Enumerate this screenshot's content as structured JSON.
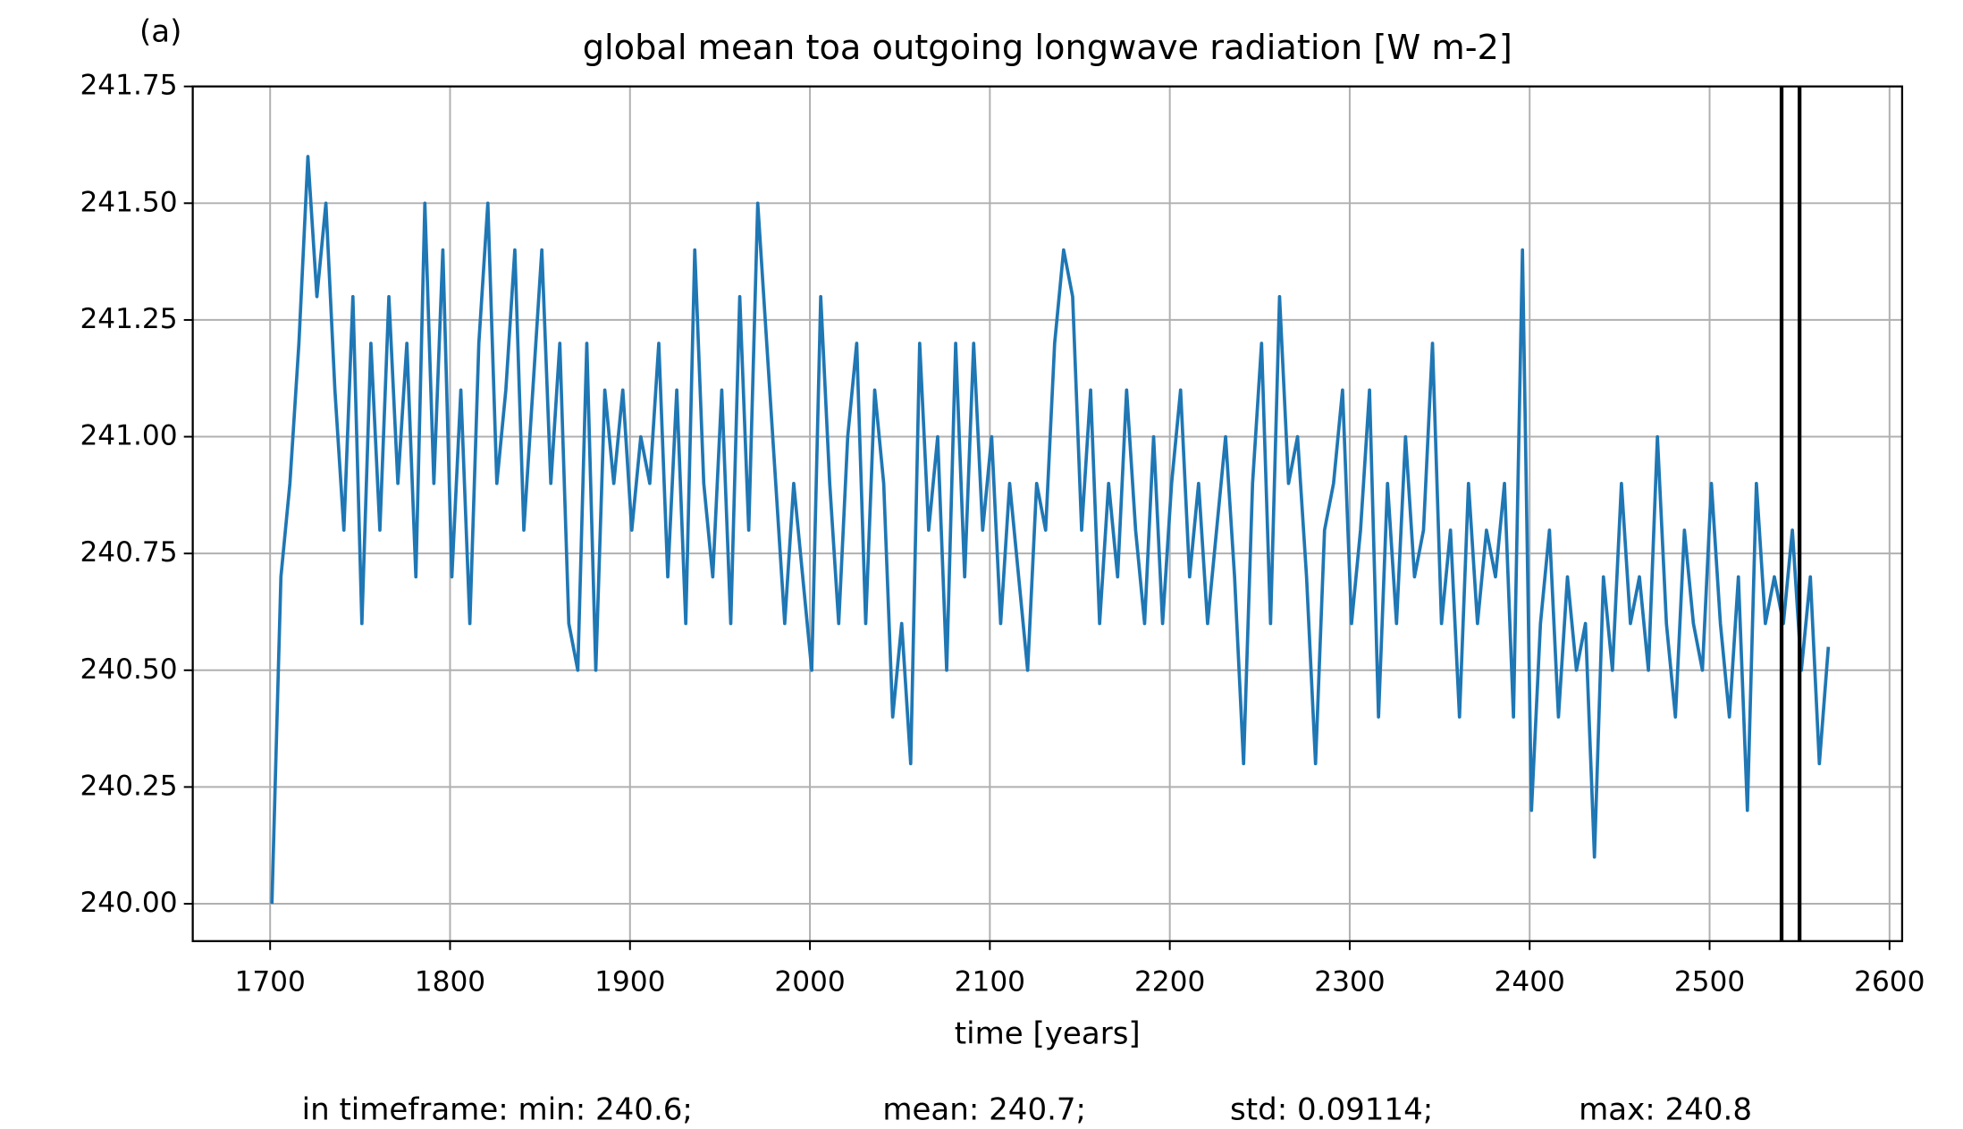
{
  "chart_data": {
    "type": "line",
    "panel_label": "(a)",
    "title": "global mean toa outgoing longwave radiation [W m-2]",
    "xlabel": "time [years]",
    "footer": [
      "in timeframe: min: 240.6;",
      "mean: 240.7;",
      "std: 0.09114;",
      "max: 240.8"
    ],
    "xlim": [
      1657,
      2607
    ],
    "ylim": [
      239.92,
      241.75
    ],
    "xticks": [
      1700,
      1800,
      1900,
      2000,
      2100,
      2200,
      2300,
      2400,
      2500,
      2600
    ],
    "yticks": [
      {
        "value": 240.0,
        "label": "240.00"
      },
      240.25,
      {
        "value": 240.5,
        "label": "240.50"
      },
      240.75,
      {
        "value": 241.0,
        "label": "241.00"
      },
      241.25,
      {
        "value": 241.5,
        "label": "241.50"
      },
      241.75
    ],
    "grid": true,
    "vlines": [
      2540,
      2550
    ],
    "vline_color": "#000000",
    "series": [
      {
        "color": "#1f77b4",
        "x": [
          1701,
          1706,
          1711,
          1716,
          1721,
          1726,
          1731,
          1736,
          1741,
          1746,
          1751,
          1756,
          1761,
          1766,
          1771,
          1776,
          1781,
          1786,
          1791,
          1796,
          1801,
          1806,
          1811,
          1816,
          1821,
          1826,
          1831,
          1836,
          1841,
          1846,
          1851,
          1856,
          1861,
          1866,
          1871,
          1876,
          1881,
          1886,
          1891,
          1896,
          1901,
          1906,
          1911,
          1916,
          1921,
          1926,
          1931,
          1936,
          1941,
          1946,
          1951,
          1956,
          1961,
          1966,
          1971,
          1976,
          1981,
          1986,
          1991,
          1996,
          2001,
          2006,
          2011,
          2016,
          2021,
          2026,
          2031,
          2036,
          2041,
          2046,
          2051,
          2056,
          2061,
          2066,
          2071,
          2076,
          2081,
          2086,
          2091,
          2096,
          2101,
          2106,
          2111,
          2116,
          2121,
          2126,
          2131,
          2136,
          2141,
          2146,
          2151,
          2156,
          2161,
          2166,
          2171,
          2176,
          2181,
          2186,
          2191,
          2196,
          2201,
          2206,
          2211,
          2216,
          2221,
          2226,
          2231,
          2236,
          2241,
          2246,
          2251,
          2256,
          2261,
          2266,
          2271,
          2276,
          2281,
          2286,
          2291,
          2296,
          2301,
          2306,
          2311,
          2316,
          2321,
          2326,
          2331,
          2336,
          2341,
          2346,
          2351,
          2356,
          2361,
          2366,
          2371,
          2376,
          2381,
          2386,
          2391,
          2396,
          2401,
          2406,
          2411,
          2416,
          2421,
          2426,
          2431,
          2436,
          2441,
          2446,
          2451,
          2456,
          2461,
          2466,
          2471,
          2476,
          2481,
          2486,
          2491,
          2496,
          2501,
          2506,
          2511,
          2516,
          2521,
          2526,
          2531,
          2536,
          2541,
          2546,
          2551,
          2556,
          2561,
          2566
        ],
        "values": [
          240.0,
          240.7,
          240.9,
          241.2,
          241.6,
          241.3,
          241.5,
          241.1,
          240.8,
          241.3,
          240.6,
          241.2,
          240.8,
          241.3,
          240.9,
          241.2,
          240.7,
          241.5,
          240.9,
          241.4,
          240.7,
          241.1,
          240.6,
          241.2,
          241.5,
          240.9,
          241.1,
          241.4,
          240.8,
          241.1,
          241.4,
          240.9,
          241.2,
          240.6,
          240.5,
          241.2,
          240.5,
          241.1,
          240.9,
          241.1,
          240.8,
          241.0,
          240.9,
          241.2,
          240.7,
          241.1,
          240.6,
          241.4,
          240.9,
          240.7,
          241.1,
          240.6,
          241.3,
          240.8,
          241.5,
          241.2,
          240.9,
          240.6,
          240.9,
          240.7,
          240.5,
          241.3,
          240.9,
          240.6,
          241.0,
          241.2,
          240.6,
          241.1,
          240.9,
          240.4,
          240.6,
          240.3,
          241.2,
          240.8,
          241.0,
          240.5,
          241.2,
          240.7,
          241.2,
          240.8,
          241.0,
          240.6,
          240.9,
          240.7,
          240.5,
          240.9,
          240.8,
          241.2,
          241.4,
          241.3,
          240.8,
          241.1,
          240.6,
          240.9,
          240.7,
          241.1,
          240.8,
          240.6,
          241.0,
          240.6,
          240.9,
          241.1,
          240.7,
          240.9,
          240.6,
          240.8,
          241.0,
          240.7,
          240.3,
          240.9,
          241.2,
          240.6,
          241.3,
          240.9,
          241.0,
          240.7,
          240.3,
          240.8,
          240.9,
          241.1,
          240.6,
          240.8,
          241.1,
          240.4,
          240.9,
          240.6,
          241.0,
          240.7,
          240.8,
          241.2,
          240.6,
          240.8,
          240.4,
          240.9,
          240.6,
          240.8,
          240.7,
          240.9,
          240.4,
          241.4,
          240.2,
          240.6,
          240.8,
          240.4,
          240.7,
          240.5,
          240.6,
          240.1,
          240.7,
          240.5,
          240.9,
          240.6,
          240.7,
          240.5,
          241.0,
          240.6,
          240.4,
          240.8,
          240.6,
          240.5,
          240.9,
          240.6,
          240.4,
          240.7,
          240.2,
          240.9,
          240.6,
          240.7,
          240.6,
          240.8,
          240.5,
          240.7,
          240.3,
          240.55
        ]
      }
    ]
  }
}
